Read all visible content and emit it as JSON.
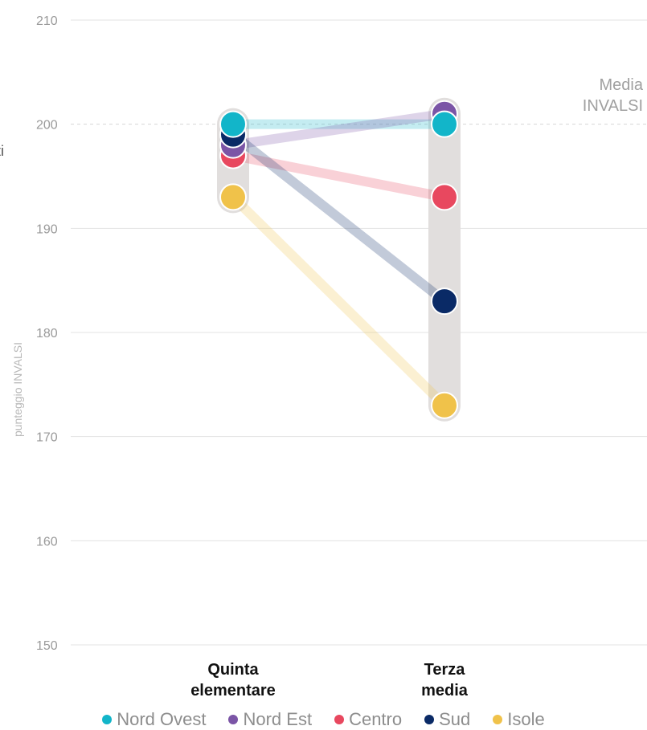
{
  "chart_data": {
    "type": "line",
    "ylabel": "punteggio INVALSI",
    "ylim": [
      150,
      210
    ],
    "yticks": [
      "150",
      "160",
      "170",
      "180",
      "190",
      "200",
      "210"
    ],
    "grid": true,
    "categories": [
      "Quinta\nelementare",
      "Terza\nmedia"
    ],
    "reference_line": {
      "value": 200,
      "label_lines": [
        "Media",
        "INVALSI"
      ]
    },
    "edge_text": "ti",
    "series": [
      {
        "name": "Nord Ovest",
        "color": "#12B5C9",
        "values": [
          200,
          200
        ]
      },
      {
        "name": "Nord Est",
        "color": "#7B55A6",
        "values": [
          198,
          201
        ]
      },
      {
        "name": "Centro",
        "color": "#E8485F",
        "values": [
          197,
          193
        ]
      },
      {
        "name": "Sud",
        "color": "#0A2A66",
        "values": [
          199,
          183
        ]
      },
      {
        "name": "Isole",
        "color": "#F0C24A",
        "values": [
          193,
          173
        ]
      }
    ],
    "legend": {
      "placement": "bottom"
    }
  }
}
